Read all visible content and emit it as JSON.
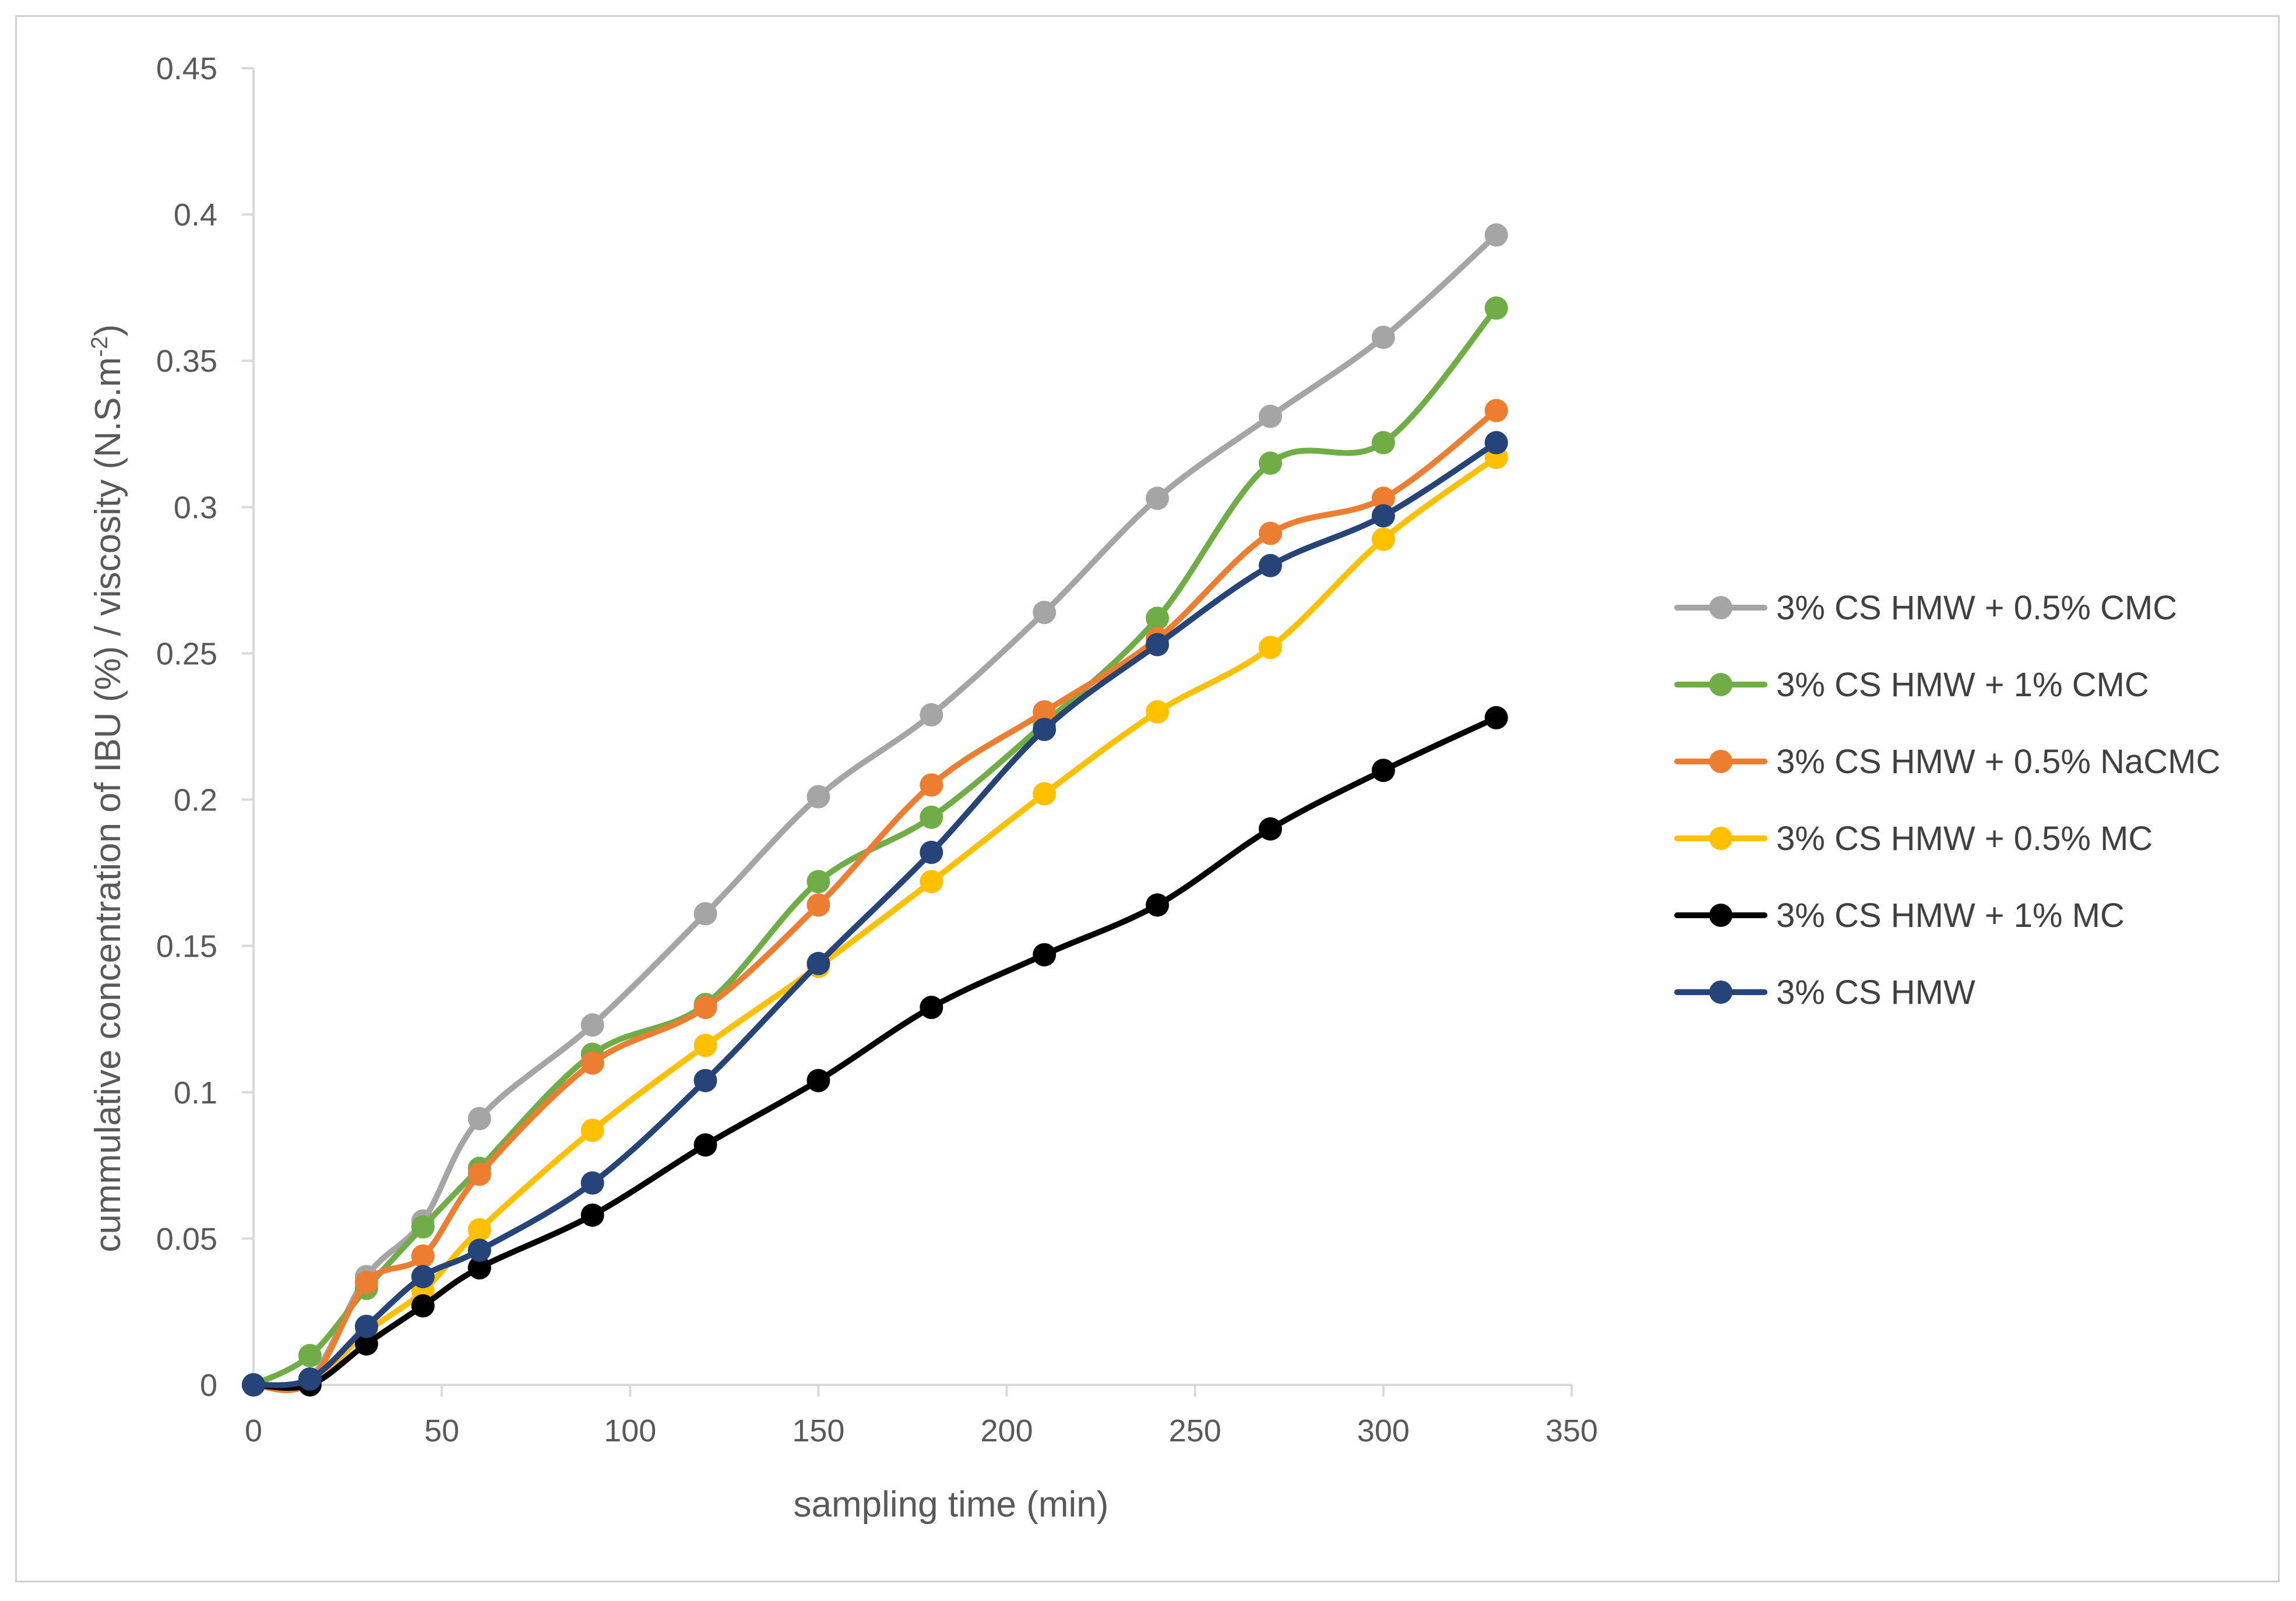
{
  "chart_data": {
    "type": "line",
    "title": "",
    "xlabel": "sampling time (min)",
    "ylabel_main": "cummulative concentration of IBU (%) / viscosity (N.S.m",
    "ylabel_sup": "-2",
    "ylabel_end": ")",
    "xlim": [
      0,
      350
    ],
    "ylim": [
      0,
      0.45
    ],
    "xticks": [
      0,
      50,
      100,
      150,
      200,
      250,
      300,
      350
    ],
    "yticks": [
      0,
      0.05,
      0.1,
      0.15,
      0.2,
      0.25,
      0.3,
      0.35,
      0.4,
      0.45
    ],
    "xtick_labels": [
      "0",
      "50",
      "100",
      "150",
      "200",
      "250",
      "300",
      "350"
    ],
    "ytick_labels": [
      "0",
      "0.05",
      "0.1",
      "0.15",
      "0.2",
      "0.25",
      "0.3",
      "0.35",
      "0.4",
      "0.45"
    ],
    "grid": false,
    "legend_position": "right",
    "x": [
      0,
      15,
      30,
      45,
      60,
      90,
      120,
      150,
      180,
      210,
      240,
      270,
      300,
      330
    ],
    "series": [
      {
        "name": "3% CS HMW + 0.5% CMC",
        "color": "#a5a5a5",
        "values": [
          0,
          0.002,
          0.037,
          0.056,
          0.091,
          0.123,
          0.161,
          0.201,
          0.229,
          0.264,
          0.303,
          0.331,
          0.358,
          0.393
        ]
      },
      {
        "name": "3% CS HMW + 1% CMC",
        "color": "#70ad47",
        "values": [
          0,
          0.01,
          0.033,
          0.054,
          0.074,
          0.113,
          0.13,
          0.172,
          0.194,
          0.226,
          0.262,
          0.315,
          0.322,
          0.368
        ]
      },
      {
        "name": "3% CS HMW + 0.5% NaCMC",
        "color": "#ed7d31",
        "values": [
          0,
          0.001,
          0.035,
          0.044,
          0.072,
          0.11,
          0.129,
          0.164,
          0.205,
          0.23,
          0.255,
          0.291,
          0.303,
          0.333
        ]
      },
      {
        "name": "3% CS HMW + 0.5% MC",
        "color": "#ffc000",
        "values": [
          0,
          0.001,
          0.018,
          0.032,
          0.053,
          0.087,
          0.116,
          0.143,
          0.172,
          0.202,
          0.23,
          0.252,
          0.289,
          0.317
        ]
      },
      {
        "name": "3% CS HMW + 1% MC",
        "color": "#000000",
        "values": [
          0,
          0,
          0.014,
          0.027,
          0.04,
          0.058,
          0.082,
          0.104,
          0.129,
          0.147,
          0.164,
          0.19,
          0.21,
          0.228
        ]
      },
      {
        "name": "3% CS HMW",
        "color": "#264478",
        "values": [
          0,
          0.002,
          0.02,
          0.037,
          0.046,
          0.069,
          0.104,
          0.144,
          0.182,
          0.224,
          0.253,
          0.28,
          0.297,
          0.322
        ]
      }
    ]
  }
}
